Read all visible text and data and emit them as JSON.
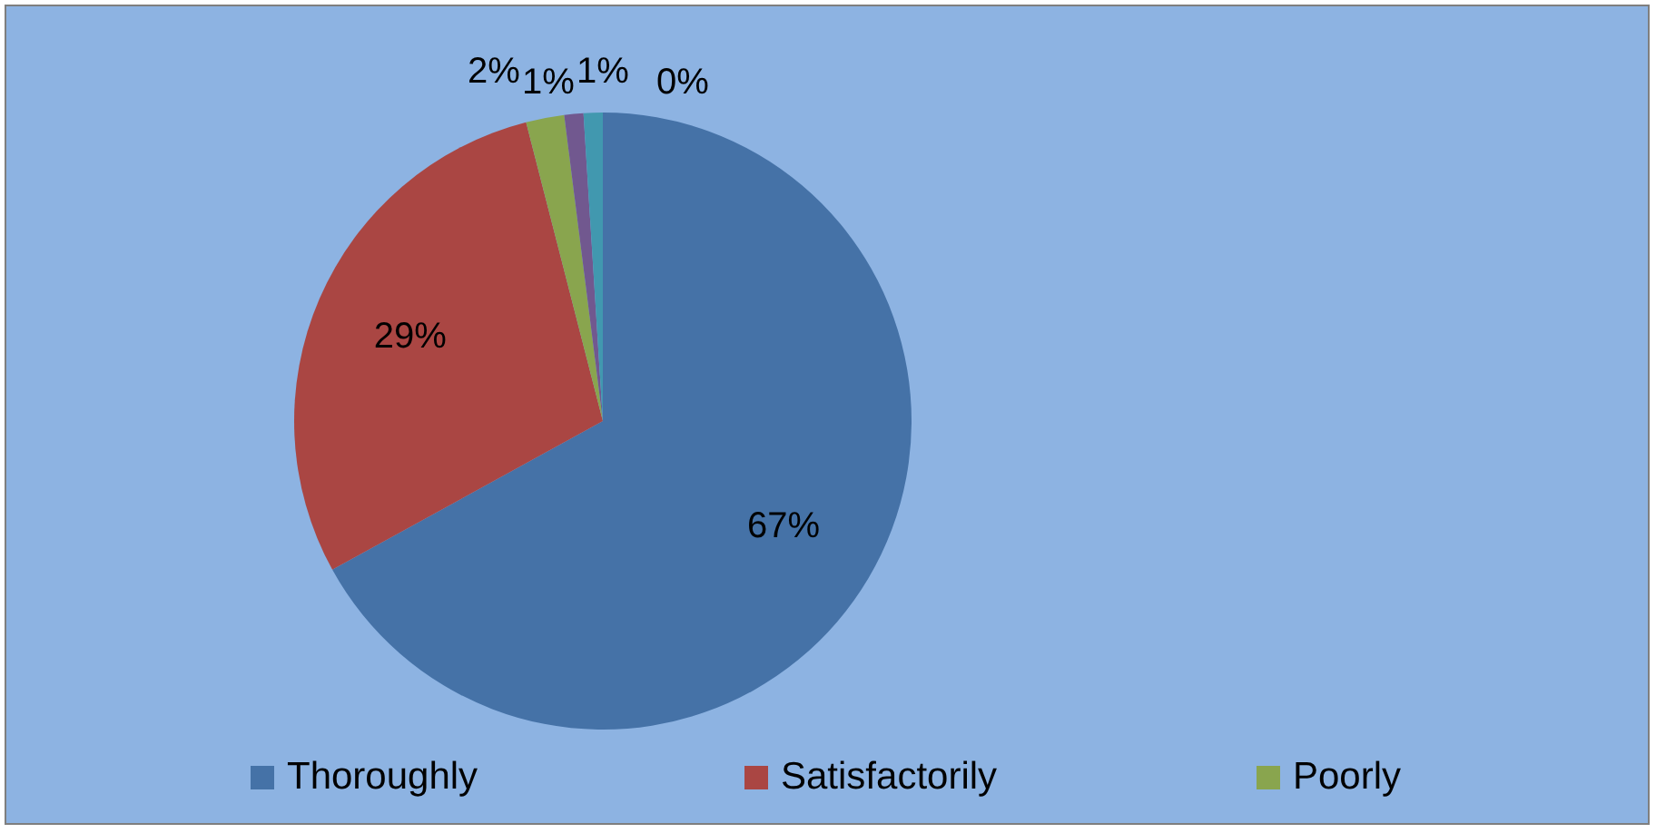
{
  "chart_data": {
    "type": "pie",
    "categories": [
      "Thoroughly",
      "Satisfactorily",
      "Poorly",
      null,
      null,
      null
    ],
    "values": [
      67,
      29,
      2,
      1,
      1,
      0
    ],
    "value_labels": [
      "67%",
      "29%",
      "2%",
      "1%",
      "1%",
      "0%"
    ],
    "colors": [
      "#4572a7",
      "#aa4643",
      "#89a54e",
      "#71588f",
      "#4198af",
      "#db843d"
    ],
    "legend": "bottom"
  }
}
